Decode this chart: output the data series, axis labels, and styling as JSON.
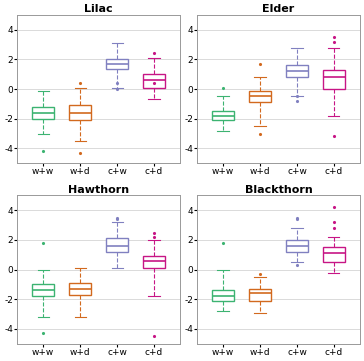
{
  "titles": [
    "Lilac",
    "Elder",
    "Hawthorn",
    "Blackthorn"
  ],
  "categories": [
    "w+w",
    "w+d",
    "c+w",
    "c+d"
  ],
  "colors": [
    "#3CB371",
    "#D2691E",
    "#8080C0",
    "#C71585"
  ],
  "ylim": [
    -5,
    5
  ],
  "yticks": [
    -4,
    -2,
    0,
    2,
    4
  ],
  "panels": {
    "Lilac": {
      "w+w": {
        "median": -1.6,
        "q1": -2.0,
        "q3": -1.2,
        "whislo": -3.0,
        "whishi": -0.1,
        "fliers": [
          -4.2
        ]
      },
      "w+d": {
        "median": -1.6,
        "q1": -2.1,
        "q3": -1.1,
        "whislo": -3.5,
        "whishi": 0.1,
        "fliers": [
          -4.3,
          0.4
        ]
      },
      "c+w": {
        "median": 1.7,
        "q1": 1.35,
        "q3": 2.05,
        "whislo": 0.1,
        "whishi": 3.1,
        "fliers": [
          0.0,
          0.4
        ]
      },
      "c+d": {
        "median": 0.6,
        "q1": 0.1,
        "q3": 1.0,
        "whislo": -0.7,
        "whishi": 2.1,
        "fliers": [
          0.4,
          2.4
        ]
      }
    },
    "Elder": {
      "w+w": {
        "median": -1.8,
        "q1": -2.1,
        "q3": -1.5,
        "whislo": -2.8,
        "whishi": -0.5,
        "fliers": [
          0.1
        ]
      },
      "w+d": {
        "median": -0.5,
        "q1": -0.9,
        "q3": -0.1,
        "whislo": -2.5,
        "whishi": 0.8,
        "fliers": [
          -3.0,
          1.7
        ]
      },
      "c+w": {
        "median": 1.2,
        "q1": 0.8,
        "q3": 1.6,
        "whislo": -0.5,
        "whishi": 2.8,
        "fliers": [
          -0.8,
          -0.5
        ]
      },
      "c+d": {
        "median": 0.8,
        "q1": 0.0,
        "q3": 1.3,
        "whislo": -1.8,
        "whishi": 2.8,
        "fliers": [
          -3.2,
          3.5,
          3.2
        ]
      }
    },
    "Hawthorn": {
      "w+w": {
        "median": -1.4,
        "q1": -1.8,
        "q3": -1.0,
        "whislo": -3.2,
        "whishi": 0.0,
        "fliers": [
          -4.3,
          1.8
        ]
      },
      "w+d": {
        "median": -1.3,
        "q1": -1.7,
        "q3": -0.9,
        "whislo": -3.2,
        "whishi": 0.1,
        "fliers": []
      },
      "c+w": {
        "median": 1.6,
        "q1": 1.2,
        "q3": 2.1,
        "whislo": 0.1,
        "whishi": 3.2,
        "fliers": [
          3.4,
          3.5
        ]
      },
      "c+d": {
        "median": 0.6,
        "q1": 0.1,
        "q3": 0.9,
        "whislo": -1.8,
        "whishi": 2.0,
        "fliers": [
          -4.5,
          2.5,
          2.2
        ]
      }
    },
    "Blackthorn": {
      "w+w": {
        "median": -1.8,
        "q1": -2.1,
        "q3": -1.4,
        "whislo": -2.8,
        "whishi": 0.0,
        "fliers": [
          1.8
        ]
      },
      "w+d": {
        "median": -1.6,
        "q1": -2.1,
        "q3": -1.3,
        "whislo": -2.9,
        "whishi": -0.5,
        "fliers": [
          -0.3
        ]
      },
      "c+w": {
        "median": 1.6,
        "q1": 1.2,
        "q3": 2.0,
        "whislo": 0.5,
        "whishi": 2.8,
        "fliers": [
          0.3,
          3.4,
          3.5
        ]
      },
      "c+d": {
        "median": 1.1,
        "q1": 0.5,
        "q3": 1.5,
        "whislo": -0.2,
        "whishi": 2.2,
        "fliers": [
          4.2,
          3.2,
          2.8
        ]
      }
    }
  }
}
